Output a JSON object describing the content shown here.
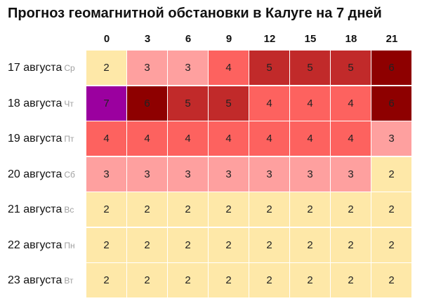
{
  "title": "Прогноз геомагнитной обстановки в Калуге на 7 дней",
  "colors": {
    "kp2": "#fee8a8",
    "kp3": "#fea09f",
    "kp4": "#fd625f",
    "kp5": "#c12a2a",
    "kp6": "#8e0000",
    "kp7": "#9b009f"
  },
  "chart_data": {
    "type": "heatmap",
    "title": "Прогноз геомагнитной обстановки в Калуге на 7 дней",
    "x_label": "",
    "y_label": "",
    "x": [
      "0",
      "3",
      "6",
      "9",
      "12",
      "15",
      "18",
      "21"
    ],
    "rows": [
      {
        "date": "17 августа",
        "dow": "Ср",
        "values": [
          2,
          3,
          3,
          4,
          5,
          5,
          5,
          6
        ]
      },
      {
        "date": "18 августа",
        "dow": "Чт",
        "values": [
          7,
          6,
          5,
          5,
          4,
          4,
          4,
          6
        ]
      },
      {
        "date": "19 августа",
        "dow": "Пт",
        "values": [
          4,
          4,
          4,
          4,
          4,
          4,
          4,
          3
        ]
      },
      {
        "date": "20 августа",
        "dow": "Сб",
        "values": [
          3,
          3,
          3,
          3,
          3,
          3,
          3,
          2
        ]
      },
      {
        "date": "21 августа",
        "dow": "Вс",
        "values": [
          2,
          2,
          2,
          2,
          2,
          2,
          2,
          2
        ]
      },
      {
        "date": "22 августа",
        "dow": "Пн",
        "values": [
          2,
          2,
          2,
          2,
          2,
          2,
          2,
          2
        ]
      },
      {
        "date": "23 августа",
        "dow": "Вт",
        "values": [
          2,
          2,
          2,
          2,
          2,
          2,
          2,
          2
        ]
      }
    ]
  }
}
